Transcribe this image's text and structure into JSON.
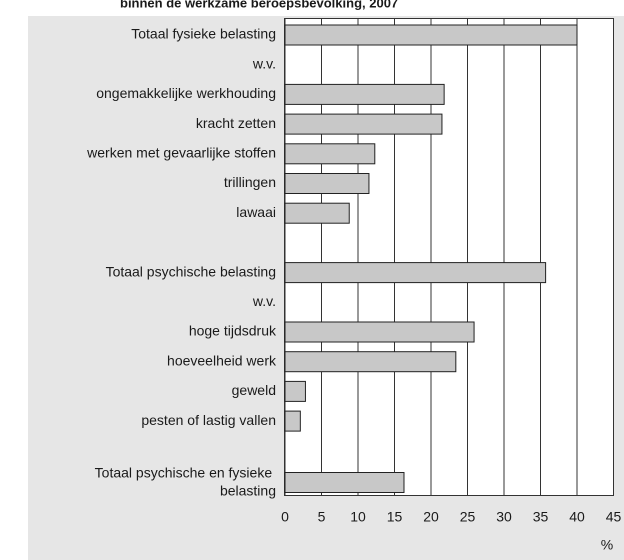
{
  "chart_data": {
    "type": "barh",
    "title": "binnen de werkzame beroepsbevolking, 2007",
    "categories": [
      "Totaal fysieke belasting",
      "w.v.",
      "ongemakkelijke werkhouding",
      "kracht zetten",
      "werken met gevaarlijke stoffen",
      "trillingen",
      "lawaai",
      null,
      "Totaal psychische belasting",
      "w.v.",
      "hoge tijdsdruk",
      "hoeveelheid werk",
      "geweld",
      "pesten of lastig vallen",
      null,
      "Totaal psychische en fysieke belasting"
    ],
    "values": [
      40,
      null,
      21.8,
      21.5,
      12.3,
      11.5,
      8.8,
      null,
      35.7,
      null,
      25.9,
      23.4,
      2.8,
      2.1,
      null,
      16.3
    ],
    "color": "#c8c8c8",
    "x_label": "%",
    "xlim": [
      0,
      45
    ],
    "xticks": [
      0,
      5,
      10,
      15,
      20,
      25,
      30,
      35,
      40,
      45
    ],
    "grid": true
  }
}
